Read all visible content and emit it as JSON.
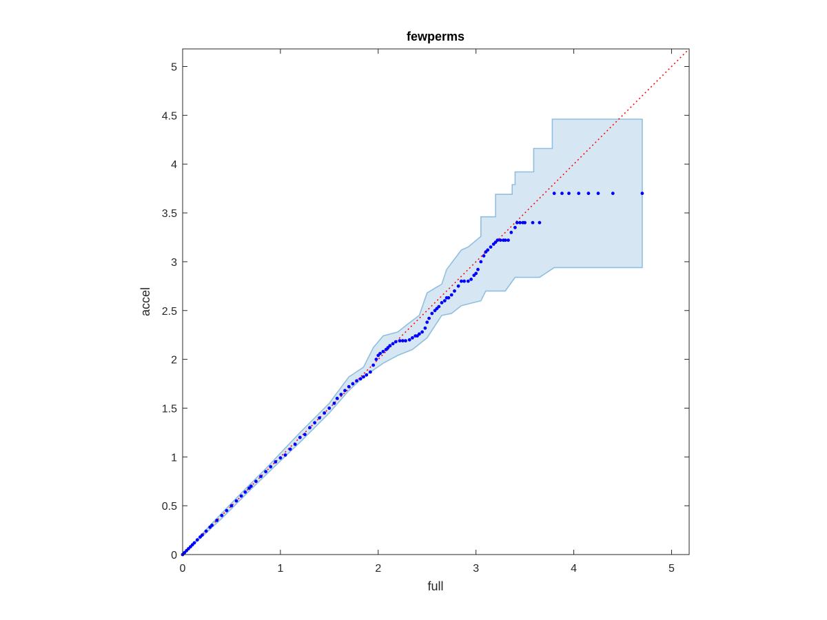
{
  "chart_data": {
    "type": "scatter",
    "title": "fewperms",
    "xlabel": "full",
    "ylabel": "accel",
    "xlim": [
      0,
      5.18
    ],
    "ylim": [
      0,
      5.18
    ],
    "xticks": [
      "0",
      "1",
      "2",
      "3",
      "4",
      "5"
    ],
    "yticks": [
      "0",
      "0.5",
      "1",
      "1.5",
      "2",
      "2.5",
      "3",
      "3.5",
      "4",
      "4.5",
      "5"
    ],
    "xtick_values": [
      0,
      1,
      2,
      3,
      4,
      5
    ],
    "ytick_values": [
      0,
      0.5,
      1,
      1.5,
      2,
      2.5,
      3,
      3.5,
      4,
      4.5,
      5
    ],
    "grid": false,
    "colors": {
      "points": "#0000ff",
      "reference": "#ff0000",
      "band_fill": "#d6e7f3",
      "band_edge": "#8fbfdf",
      "axes": "#262626"
    },
    "reference_line": {
      "name": "y = x",
      "style": "dotted",
      "from": [
        0,
        0
      ],
      "to": [
        5.18,
        5.18
      ]
    },
    "band": {
      "upper": [
        [
          0,
          0
        ],
        [
          0.3,
          0.32
        ],
        [
          0.6,
          0.63
        ],
        [
          0.85,
          0.88
        ],
        [
          1.2,
          1.25
        ],
        [
          1.5,
          1.55
        ],
        [
          1.7,
          1.82
        ],
        [
          1.85,
          1.92
        ],
        [
          1.95,
          2.12
        ],
        [
          2.05,
          2.24
        ],
        [
          2.2,
          2.28
        ],
        [
          2.3,
          2.36
        ],
        [
          2.42,
          2.45
        ],
        [
          2.5,
          2.68
        ],
        [
          2.65,
          2.77
        ],
        [
          2.7,
          2.92
        ],
        [
          2.85,
          3.12
        ],
        [
          2.92,
          3.15
        ],
        [
          3.05,
          3.26
        ],
        [
          3.05,
          3.46
        ],
        [
          3.2,
          3.46
        ],
        [
          3.2,
          3.69
        ],
        [
          3.37,
          3.69
        ],
        [
          3.37,
          3.79
        ],
        [
          3.4,
          3.79
        ],
        [
          3.4,
          3.92
        ],
        [
          3.59,
          3.92
        ],
        [
          3.59,
          4.16
        ],
        [
          3.78,
          4.16
        ],
        [
          3.78,
          4.46
        ],
        [
          4.7,
          4.46
        ]
      ],
      "lower": [
        [
          4.7,
          2.94
        ],
        [
          3.8,
          2.94
        ],
        [
          3.65,
          2.84
        ],
        [
          3.4,
          2.84
        ],
        [
          3.3,
          2.7
        ],
        [
          3.1,
          2.7
        ],
        [
          3.05,
          2.6
        ],
        [
          2.85,
          2.55
        ],
        [
          2.75,
          2.47
        ],
        [
          2.65,
          2.45
        ],
        [
          2.5,
          2.22
        ],
        [
          2.35,
          2.1
        ],
        [
          2.2,
          2.04
        ],
        [
          2.05,
          1.96
        ],
        [
          1.85,
          1.82
        ],
        [
          1.7,
          1.68
        ],
        [
          1.5,
          1.45
        ],
        [
          1.2,
          1.15
        ],
        [
          1.0,
          0.96
        ],
        [
          0.7,
          0.67
        ],
        [
          0.4,
          0.37
        ],
        [
          0,
          0
        ]
      ]
    },
    "series": [
      {
        "x": [
          0,
          0.02,
          0.04,
          0.06,
          0.08,
          0.1,
          0.12,
          0.15,
          0.18,
          0.2,
          0.24,
          0.28,
          0.3,
          0.35,
          0.4,
          0.45,
          0.5,
          0.55,
          0.6,
          0.64,
          0.68,
          0.7,
          0.75,
          0.8,
          0.85,
          0.9,
          0.95,
          1.0,
          1.05,
          1.1,
          1.15,
          1.2,
          1.25,
          1.3,
          1.35,
          1.4,
          1.45,
          1.5,
          1.55,
          1.58,
          1.62,
          1.66,
          1.7,
          1.74,
          1.78,
          1.82,
          1.85,
          1.88,
          1.92,
          1.95,
          1.98,
          2.0,
          2.02,
          2.05,
          2.08,
          2.1,
          2.12,
          2.15,
          2.18,
          2.22,
          2.25,
          2.28,
          2.32,
          2.35,
          2.38,
          2.4,
          2.42,
          2.45,
          2.48,
          2.5,
          2.52,
          2.55,
          2.58,
          2.6,
          2.62,
          2.65,
          2.68,
          2.7,
          2.72,
          2.75,
          2.78,
          2.82,
          2.85,
          2.88,
          2.92,
          2.95,
          2.98,
          3.0,
          3.02,
          3.05,
          3.08,
          3.1,
          3.12,
          3.15,
          3.18,
          3.2,
          3.22,
          3.25,
          3.28,
          3.3,
          3.33,
          3.36,
          3.4,
          3.42,
          3.45,
          3.48,
          3.5,
          3.58,
          3.65,
          3.8,
          3.88,
          3.95,
          4.05,
          4.15,
          4.25,
          4.4,
          4.7
        ],
        "y": [
          0,
          0.02,
          0.04,
          0.06,
          0.08,
          0.1,
          0.12,
          0.15,
          0.18,
          0.2,
          0.24,
          0.28,
          0.3,
          0.35,
          0.4,
          0.45,
          0.5,
          0.55,
          0.6,
          0.64,
          0.68,
          0.7,
          0.75,
          0.8,
          0.85,
          0.9,
          0.95,
          0.99,
          1.02,
          1.08,
          1.13,
          1.2,
          1.23,
          1.3,
          1.35,
          1.4,
          1.45,
          1.5,
          1.55,
          1.6,
          1.64,
          1.68,
          1.72,
          1.75,
          1.78,
          1.8,
          1.82,
          1.84,
          1.87,
          1.94,
          2.0,
          2.04,
          2.06,
          2.08,
          2.1,
          2.12,
          2.14,
          2.16,
          2.18,
          2.19,
          2.19,
          2.19,
          2.2,
          2.22,
          2.24,
          2.24,
          2.26,
          2.28,
          2.32,
          2.38,
          2.42,
          2.47,
          2.5,
          2.52,
          2.54,
          2.58,
          2.6,
          2.63,
          2.63,
          2.66,
          2.7,
          2.75,
          2.8,
          2.8,
          2.8,
          2.82,
          2.86,
          2.88,
          2.92,
          3.0,
          3.06,
          3.1,
          3.12,
          3.15,
          3.18,
          3.2,
          3.22,
          3.22,
          3.22,
          3.22,
          3.22,
          3.3,
          3.35,
          3.4,
          3.4,
          3.4,
          3.4,
          3.4,
          3.4,
          3.7,
          3.7,
          3.7,
          3.7,
          3.7,
          3.7,
          3.7,
          3.7
        ]
      }
    ]
  }
}
